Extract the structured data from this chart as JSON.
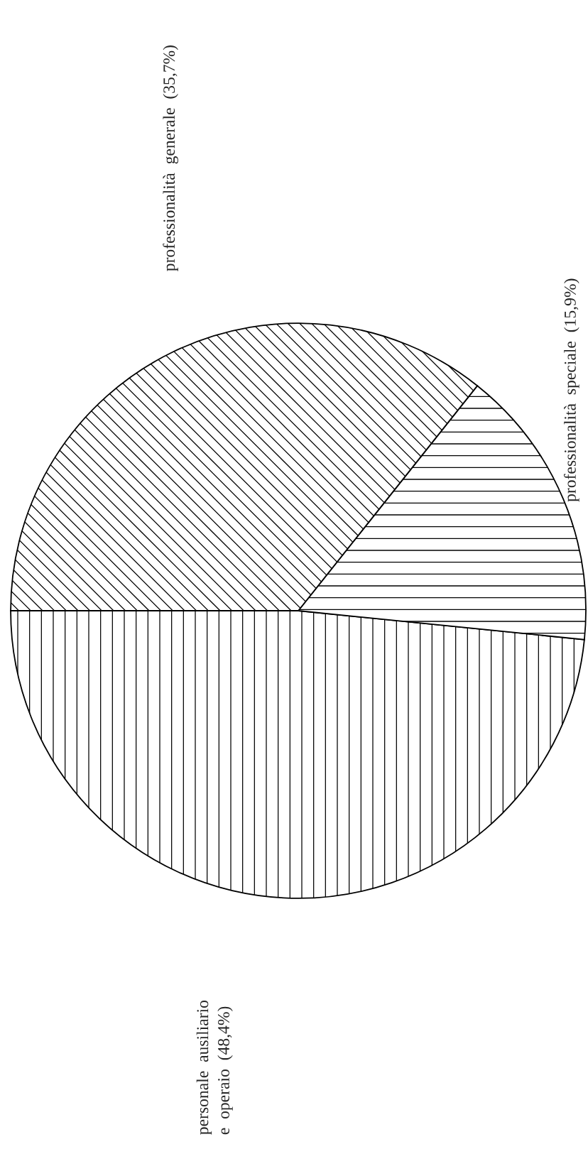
{
  "chart_data": {
    "type": "pie",
    "categories": [
      "personale  ausiliario\ne  operaio",
      "professionalità  speciale",
      "professionalità  generale"
    ],
    "values": [
      48.4,
      15.9,
      35.7
    ],
    "value_labels": [
      "(48,4%)",
      "(15,9%)",
      "(35,7%)"
    ],
    "colors": [
      "#ffffff",
      "#ffffff",
      "#ffffff"
    ]
  }
}
